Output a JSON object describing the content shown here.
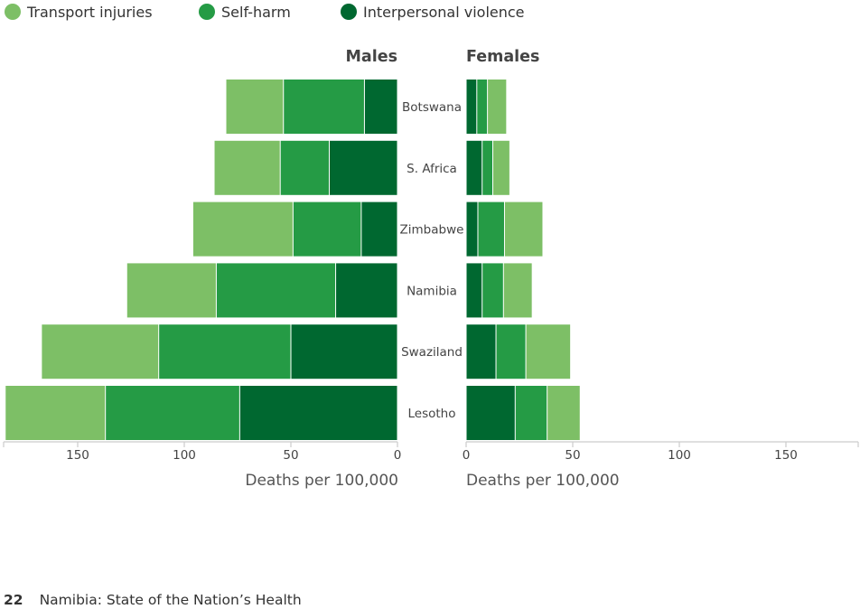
{
  "chart_data": {
    "type": "bar",
    "legend": {
      "placement": "top-left",
      "items": [
        {
          "label": "Transport injuries",
          "color": "#7dbf66"
        },
        {
          "label": "Self-harm",
          "color": "#259b45"
        },
        {
          "label": "Interpersonal violence",
          "color": "#006830"
        }
      ]
    },
    "categories": [
      "Botswana",
      "S. Africa",
      "Zimbabwe",
      "Namibia",
      "Swaziland",
      "Lesotho"
    ],
    "panels": [
      {
        "title": "Males",
        "xlabel": "Deaths per 100,000",
        "xlim": [
          0,
          185
        ],
        "direction": "reversed",
        "ticks": [
          0,
          50,
          100,
          150
        ],
        "series": [
          {
            "name": "Interpersonal violence",
            "values": [
              15.5,
              32,
              17,
              29,
              50,
              74
            ]
          },
          {
            "name": "Self-harm",
            "values": [
              38,
              23,
              32,
              56,
              62,
              63
            ]
          },
          {
            "name": "Transport injuries",
            "values": [
              27,
              31,
              47,
              42,
              55,
              47
            ]
          }
        ]
      },
      {
        "title": "Females",
        "xlabel": "Deaths per 100,000",
        "xlim": [
          0,
          185
        ],
        "direction": "normal",
        "ticks": [
          0,
          50,
          100,
          150
        ],
        "series": [
          {
            "name": "Interpersonal violence",
            "values": [
              5,
              7.5,
              5.5,
              7.5,
              14,
              23
            ]
          },
          {
            "name": "Self-harm",
            "values": [
              5,
              5,
              12.5,
              10,
              14,
              15
            ]
          },
          {
            "name": "Transport injuries",
            "values": [
              9,
              8,
              18,
              13.5,
              21,
              15.5
            ]
          }
        ]
      }
    ]
  },
  "footer": {
    "page_number": "22",
    "title": "Namibia: State of the Nation’s Health"
  }
}
